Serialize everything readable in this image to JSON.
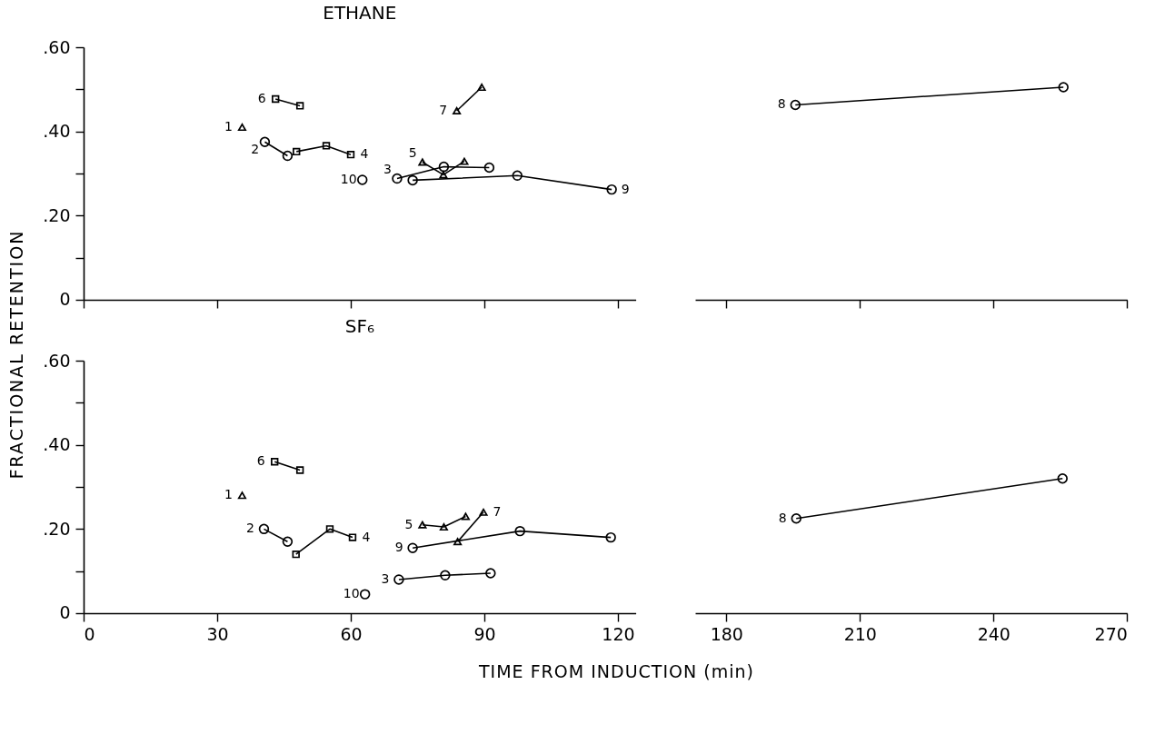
{
  "chart_data": [
    {
      "type": "line",
      "title": "ETHANE",
      "ylabel": "FRACTIONAL RETENTION",
      "xlim": [
        0,
        124
      ],
      "xticks": [
        0,
        30,
        60,
        90,
        120
      ],
      "ylim": [
        0,
        0.6
      ],
      "yticks": [
        0,
        {
          "value": 0.1,
          "label": null
        },
        {
          "value": 0.2,
          "label": ".20"
        },
        {
          "value": 0.3,
          "label": null
        },
        {
          "value": 0.4,
          "label": ".40"
        },
        {
          "value": 0.5,
          "label": null
        },
        {
          "value": 0.6,
          "label": ".60"
        }
      ],
      "tick_labels": "y",
      "series": [
        {
          "name": "1",
          "marker": "triangle",
          "color": "#000000",
          "x": [
            35.6
          ],
          "values": [
            0.41
          ]
        },
        {
          "name": "2",
          "marker": "circle",
          "color": "#000000",
          "x": [
            40.7,
            45.8
          ],
          "values": [
            0.375,
            0.342
          ]
        },
        {
          "name": "3",
          "marker": "circle",
          "color": "#000000",
          "x": [
            70.4,
            80.9,
            91.1
          ],
          "values": [
            0.288,
            0.316,
            0.314
          ]
        },
        {
          "name": "4",
          "marker": "square",
          "color": "#000000",
          "x": [
            47.8,
            54.5,
            60.0
          ],
          "values": [
            0.352,
            0.366,
            0.345
          ]
        },
        {
          "name": "5",
          "marker": "triangle",
          "color": "#000000",
          "x": [
            76.1,
            80.8,
            85.5
          ],
          "values": [
            0.327,
            0.297,
            0.329
          ]
        },
        {
          "name": "6",
          "marker": "square",
          "color": "#000000",
          "x": [
            43.1,
            48.6
          ],
          "values": [
            0.477,
            0.461
          ]
        },
        {
          "name": "7",
          "marker": "triangle",
          "color": "#000000",
          "x": [
            83.8,
            89.4
          ],
          "values": [
            0.449,
            0.505
          ]
        },
        {
          "name": "9",
          "marker": "circle",
          "color": "#000000",
          "x": [
            73.9,
            97.4,
            118.6
          ],
          "values": [
            0.284,
            0.295,
            0.262
          ]
        },
        {
          "name": "10",
          "marker": "circle",
          "color": "#000000",
          "x": [
            62.6
          ],
          "values": [
            0.285
          ]
        }
      ]
    },
    {
      "type": "line",
      "xlim": [
        173,
        270
      ],
      "xticks": [
        180,
        210,
        240,
        270
      ],
      "ylim": [
        0,
        0.6
      ],
      "tick_labels": false,
      "series": [
        {
          "name": "8",
          "marker": "circle",
          "color": "#000000",
          "x": [
            195.5,
            255.7
          ],
          "values": [
            0.463,
            0.505
          ]
        }
      ]
    },
    {
      "type": "line",
      "title": "SF₆",
      "xlabel": "TIME FROM INDUCTION (min)",
      "xlim": [
        0,
        124
      ],
      "xticks": [
        0,
        30,
        60,
        90,
        120
      ],
      "ylim": [
        0,
        0.6
      ],
      "yticks": [
        0,
        {
          "value": 0.1,
          "label": null
        },
        {
          "value": 0.2,
          "label": ".20"
        },
        {
          "value": 0.3,
          "label": null
        },
        {
          "value": 0.4,
          "label": ".40"
        },
        {
          "value": 0.5,
          "label": null
        },
        {
          "value": 0.6,
          "label": ".60"
        }
      ],
      "series": [
        {
          "name": "1",
          "marker": "triangle",
          "color": "#000000",
          "x": [
            35.6
          ],
          "values": [
            0.28
          ]
        },
        {
          "name": "2",
          "marker": "circle",
          "color": "#000000",
          "x": [
            40.5,
            45.8
          ],
          "values": [
            0.2,
            0.17
          ]
        },
        {
          "name": "3",
          "marker": "circle",
          "color": "#000000",
          "x": [
            70.8,
            81.2,
            91.4
          ],
          "values": [
            0.08,
            0.09,
            0.095
          ]
        },
        {
          "name": "4",
          "marker": "square",
          "color": "#000000",
          "x": [
            47.7,
            55.3,
            60.4
          ],
          "values": [
            0.14,
            0.2,
            0.18
          ]
        },
        {
          "name": "5",
          "marker": "triangle",
          "color": "#000000",
          "x": [
            76.1,
            80.9,
            85.8
          ],
          "values": [
            0.21,
            0.205,
            0.23
          ]
        },
        {
          "name": "6",
          "marker": "square",
          "color": "#000000",
          "x": [
            42.9,
            48.6
          ],
          "values": [
            0.36,
            0.34
          ]
        },
        {
          "name": "7",
          "marker": "triangle",
          "color": "#000000",
          "x": [
            84.0,
            89.8
          ],
          "values": [
            0.17,
            0.24
          ]
        },
        {
          "name": "9",
          "marker": "circle",
          "color": "#000000",
          "x": [
            73.9,
            98.0,
            118.4
          ],
          "values": [
            0.155,
            0.195,
            0.18
          ]
        },
        {
          "name": "10",
          "marker": "circle",
          "color": "#000000",
          "x": [
            63.2
          ],
          "values": [
            0.045
          ]
        }
      ]
    },
    {
      "type": "line",
      "xlim": [
        173,
        270
      ],
      "xticks": [
        180,
        210,
        240,
        270
      ],
      "ylim": [
        0,
        0.6
      ],
      "tick_labels": "x",
      "series": [
        {
          "name": "8",
          "marker": "circle",
          "color": "#000000",
          "x": [
            195.7,
            255.5
          ],
          "values": [
            0.225,
            0.32
          ]
        }
      ]
    }
  ]
}
